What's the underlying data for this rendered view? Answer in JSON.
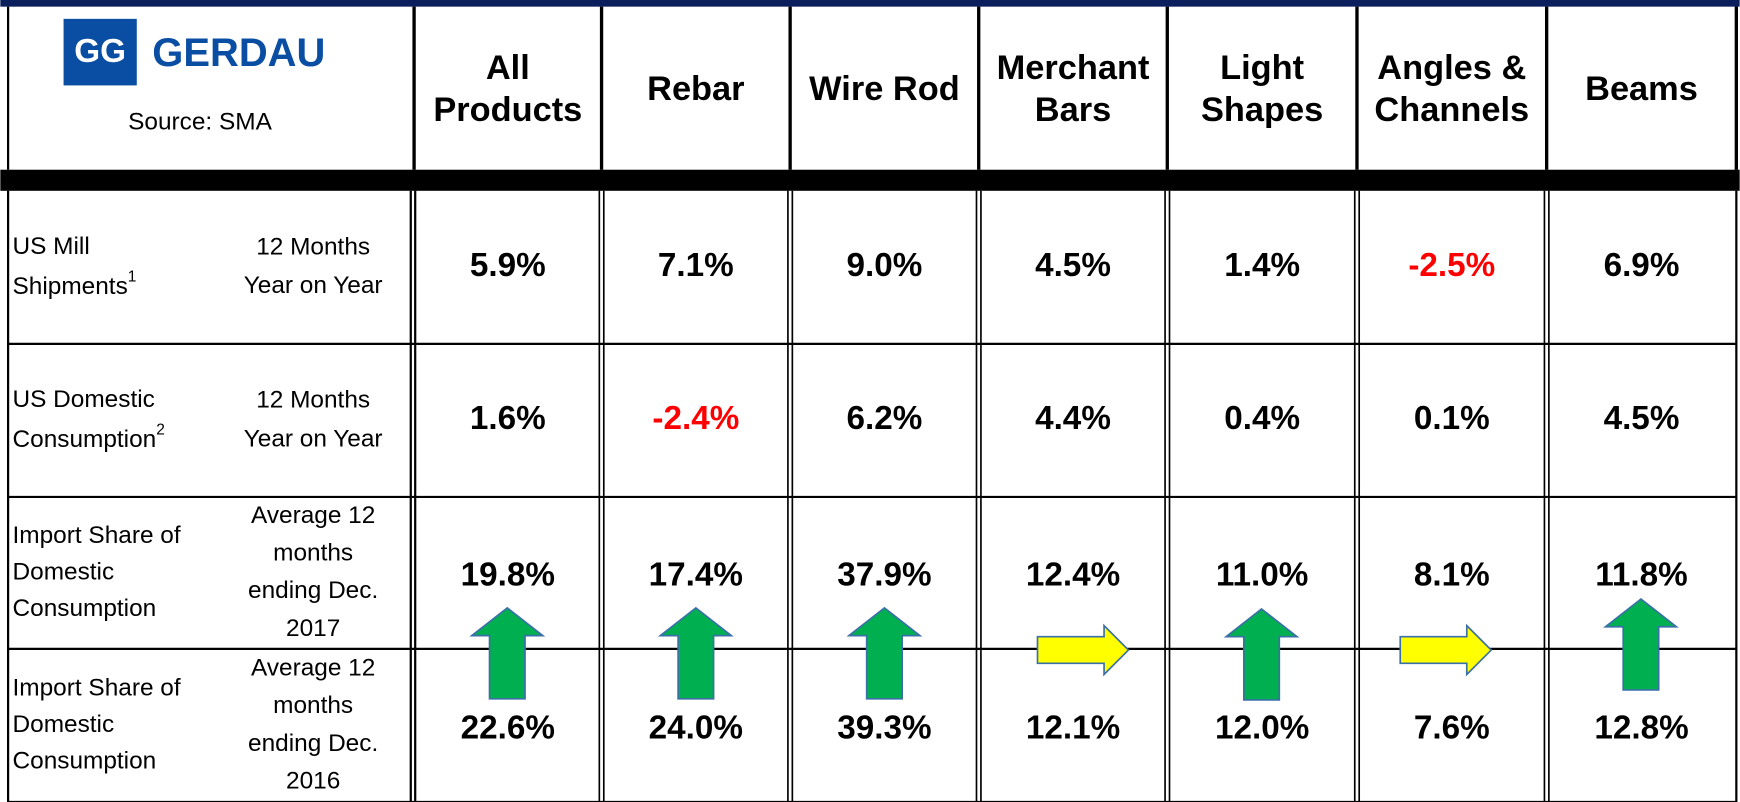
{
  "header": {
    "logo_mark": "GG",
    "logo": "GERDAU",
    "source": "Source: SMA",
    "columns": [
      [
        "All",
        "Products"
      ],
      [
        "Rebar"
      ],
      [
        "Wire Rod"
      ],
      [
        "Merchant",
        "Bars"
      ],
      [
        "Light",
        "Shapes"
      ],
      [
        "Angles &",
        "Channels"
      ],
      [
        "Beams"
      ]
    ]
  },
  "rows": [
    {
      "label": [
        "US Mill",
        "Shipments"
      ],
      "note": "1",
      "period": [
        "12 Months",
        "Year on Year"
      ],
      "values": [
        "5.9%",
        "7.1%",
        "9.0%",
        "4.5%",
        "1.4%",
        "-2.5%",
        "6.9%"
      ]
    },
    {
      "label": [
        "US Domestic",
        "Consumption"
      ],
      "note": "2",
      "period": [
        "12 Months",
        "Year on Year"
      ],
      "values": [
        "1.6%",
        "-2.4%",
        "6.2%",
        "4.4%",
        "0.4%",
        "0.1%",
        "4.5%"
      ]
    },
    {
      "label": [
        "Import Share of",
        "Domestic",
        "Consumption"
      ],
      "period": [
        "Average 12",
        "months",
        "ending Dec.",
        "2017"
      ],
      "values": [
        "19.8%",
        "17.4%",
        "37.9%",
        "12.4%",
        "11.0%",
        "8.1%",
        "11.8%"
      ]
    },
    {
      "label": [
        "Import Share of",
        "Domestic",
        "Consumption"
      ],
      "period": [
        "Average 12",
        "months",
        "ending Dec.",
        "2016"
      ],
      "values": [
        "22.6%",
        "24.0%",
        "39.3%",
        "12.1%",
        "12.0%",
        "7.6%",
        "12.8%"
      ]
    }
  ]
}
